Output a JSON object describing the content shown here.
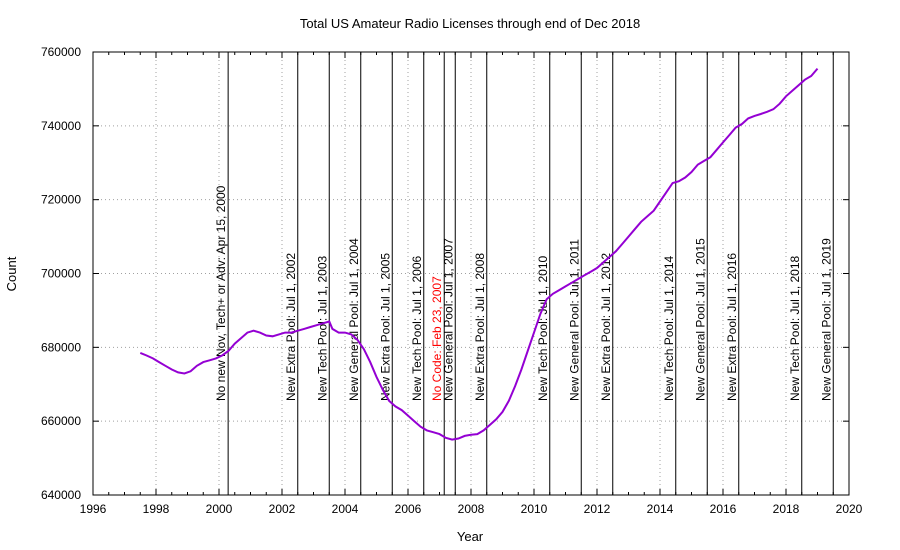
{
  "chart_data": {
    "type": "line",
    "title": "Total US Amateur Radio Licenses through end of Dec 2018",
    "xlabel": "Year",
    "ylabel": "Count",
    "xlim": [
      1996,
      2020
    ],
    "ylim": [
      640000,
      760000
    ],
    "x_ticks": [
      1996,
      1998,
      2000,
      2002,
      2004,
      2006,
      2008,
      2010,
      2012,
      2014,
      2016,
      2018,
      2020
    ],
    "y_ticks": [
      640000,
      660000,
      680000,
      700000,
      720000,
      740000,
      760000
    ],
    "grid": true,
    "line_color": "#9400d3",
    "series": [
      {
        "x": [
          1997.5,
          1997.7,
          1997.9,
          1998.1,
          1998.3,
          1998.5,
          1998.7,
          1998.9,
          1999.1,
          1999.3,
          1999.5,
          1999.7,
          1999.9,
          2000.1,
          2000.3,
          2000.5,
          2000.7,
          2000.9,
          2001.1,
          2001.3,
          2001.5,
          2001.7,
          2001.9,
          2002.1,
          2002.3,
          2002.5,
          2002.7,
          2002.9,
          2003.1,
          2003.3,
          2003.5,
          2003.6,
          2003.8,
          2004.0,
          2004.2,
          2004.4,
          2004.6,
          2004.8,
          2005.0,
          2005.2,
          2005.4,
          2005.6,
          2005.8,
          2006.0,
          2006.2,
          2006.4,
          2006.6,
          2006.8,
          2007.0,
          2007.2,
          2007.4,
          2007.6,
          2007.8,
          2008.0,
          2008.2,
          2008.4,
          2008.6,
          2008.8,
          2009.0,
          2009.2,
          2009.4,
          2009.6,
          2009.8,
          2010.0,
          2010.2,
          2010.4,
          2010.6,
          2010.8,
          2011.0,
          2011.2,
          2011.4,
          2011.6,
          2011.8,
          2012.0,
          2012.2,
          2012.4,
          2012.6,
          2012.8,
          2013.0,
          2013.2,
          2013.4,
          2013.6,
          2013.8,
          2014.0,
          2014.2,
          2014.4,
          2014.6,
          2014.8,
          2015.0,
          2015.2,
          2015.4,
          2015.6,
          2015.8,
          2016.0,
          2016.2,
          2016.4,
          2016.6,
          2016.8,
          2017.0,
          2017.2,
          2017.4,
          2017.6,
          2017.8,
          2018.0,
          2018.2,
          2018.4,
          2018.6,
          2018.8,
          2019.0
        ],
        "y": [
          678500,
          677800,
          677000,
          676000,
          675000,
          674000,
          673200,
          672900,
          673500,
          675000,
          676000,
          676500,
          677000,
          677800,
          679000,
          681000,
          682500,
          684000,
          684500,
          684000,
          683200,
          683000,
          683500,
          684000,
          684000,
          684500,
          685000,
          685500,
          686000,
          686500,
          687000,
          685000,
          684000,
          684000,
          683500,
          682000,
          679500,
          676000,
          672000,
          668500,
          665500,
          664000,
          663000,
          661500,
          660000,
          658500,
          657500,
          657000,
          656500,
          655500,
          655000,
          655300,
          656000,
          656300,
          656500,
          657500,
          659000,
          660500,
          662500,
          665500,
          669500,
          674000,
          679000,
          684000,
          689000,
          693000,
          694500,
          695500,
          696500,
          697500,
          698500,
          699500,
          700500,
          701500,
          703000,
          704500,
          706000,
          708000,
          710000,
          712000,
          714000,
          715500,
          717000,
          719500,
          722000,
          724500,
          725000,
          726000,
          727500,
          729500,
          730500,
          731500,
          733500,
          735500,
          737500,
          739500,
          740500,
          742000,
          742700,
          743200,
          743800,
          744500,
          746000,
          748000,
          749500,
          751000,
          752500,
          753500,
          755500
        ]
      }
    ],
    "annotations": [
      {
        "x": 2000.29,
        "label": "No new Nov, Tech+ or Adv: Apr 15, 2000",
        "color": "#000000"
      },
      {
        "x": 2002.5,
        "label": "New Extra Pool: Jul 1, 2002",
        "color": "#000000"
      },
      {
        "x": 2003.5,
        "label": "New Tech Pool: Jul 1, 2003",
        "color": "#000000"
      },
      {
        "x": 2004.5,
        "label": "New General Pool: Jul 1, 2004",
        "color": "#000000"
      },
      {
        "x": 2005.5,
        "label": "New Extra Pool: Jul 1, 2005",
        "color": "#000000"
      },
      {
        "x": 2006.5,
        "label": "New Tech Pool: Jul 1, 2006",
        "color": "#000000"
      },
      {
        "x": 2007.15,
        "label": "No Code: Feb 23, 2007",
        "color": "#ff0000"
      },
      {
        "x": 2007.5,
        "label": "New General Pool: Jul 1, 2007",
        "color": "#000000"
      },
      {
        "x": 2008.5,
        "label": "New Extra Pool: Jul 1, 2008",
        "color": "#000000"
      },
      {
        "x": 2010.5,
        "label": "New Tech Pool: Jul 1, 2010",
        "color": "#000000"
      },
      {
        "x": 2011.5,
        "label": "New General Pool: Jul 1, 2011",
        "color": "#000000"
      },
      {
        "x": 2012.5,
        "label": "New Extra Pool: Jul 1, 2012",
        "color": "#000000"
      },
      {
        "x": 2014.5,
        "label": "New Tech Pool: Jul 1, 2014",
        "color": "#000000"
      },
      {
        "x": 2015.5,
        "label": "New General Pool: Jul 1, 2015",
        "color": "#000000"
      },
      {
        "x": 2016.5,
        "label": "New Extra Pool: Jul 1, 2016",
        "color": "#000000"
      },
      {
        "x": 2018.5,
        "label": "New Tech Pool: Jul 1, 2018",
        "color": "#000000"
      },
      {
        "x": 2019.5,
        "label": "New General Pool: Jul 1, 2019",
        "color": "#000000"
      }
    ]
  }
}
